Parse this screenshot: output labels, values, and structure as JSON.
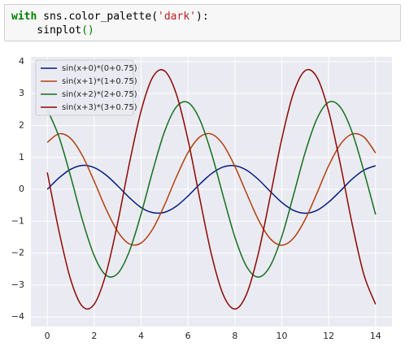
{
  "code": {
    "lines": [
      [
        {
          "text": "with",
          "color": "#008000",
          "bold": true
        },
        {
          "text": " sns.color_palette(",
          "color": "#000000",
          "bold": false
        },
        {
          "text": "'dark'",
          "color": "#ba2121",
          "bold": false
        },
        {
          "text": "):",
          "color": "#000000",
          "bold": false
        }
      ],
      [
        {
          "text": "    sinplot",
          "color": "#000000",
          "bold": false
        },
        {
          "text": "()",
          "color": "#008000",
          "bold": false
        }
      ]
    ]
  },
  "chart_data": {
    "type": "line",
    "x": [
      0,
      0.5,
      1,
      1.5,
      2,
      2.5,
      3,
      3.5,
      4,
      4.5,
      5,
      5.5,
      6,
      6.5,
      7,
      7.5,
      8,
      8.5,
      9,
      9.5,
      10,
      10.5,
      11,
      11.5,
      12,
      12.5,
      13,
      13.5,
      14
    ],
    "series": [
      {
        "name": "sin(x+0)*(0+0.75)",
        "color": "#001c7f",
        "values": [
          0,
          0.36,
          0.63,
          0.75,
          0.68,
          0.45,
          0.11,
          -0.26,
          -0.57,
          -0.73,
          -0.72,
          -0.53,
          -0.21,
          0.16,
          0.49,
          0.7,
          0.74,
          0.6,
          0.31,
          -0.06,
          -0.41,
          -0.66,
          -0.75,
          -0.66,
          -0.4,
          -0.05,
          0.32,
          0.6,
          0.74
        ]
      },
      {
        "name": "sin(x+1)*(1+0.75)",
        "color": "#b1400d",
        "values": [
          1.47,
          1.74,
          1.59,
          1.05,
          0.25,
          -0.61,
          -1.32,
          -1.71,
          -1.68,
          -1.24,
          -0.49,
          0.38,
          1.15,
          1.64,
          1.73,
          1.4,
          0.72,
          -0.13,
          -0.95,
          -1.54,
          -1.75,
          -1.53,
          -0.94,
          -0.12,
          0.74,
          1.41,
          1.73,
          1.64,
          1.14
        ]
      },
      {
        "name": "sin(x+2)*(2+0.75)",
        "color": "#12711c",
        "values": [
          2.5,
          1.64,
          0.39,
          -0.97,
          -2.08,
          -2.69,
          -2.64,
          -1.94,
          -0.77,
          0.59,
          1.81,
          2.58,
          2.72,
          2.19,
          1.13,
          -0.21,
          -1.5,
          -2.42,
          -2.75,
          -2.41,
          -1.48,
          -0.18,
          1.16,
          2.21,
          2.73,
          2.57,
          1.79,
          0.57,
          -0.79
        ]
      },
      {
        "name": "sin(x+3)*(3+0.75)",
        "color": "#8c0800",
        "values": [
          0.53,
          -1.32,
          -2.84,
          -3.67,
          -3.6,
          -2.65,
          -1.05,
          0.81,
          2.46,
          3.52,
          3.71,
          2.99,
          1.55,
          -0.28,
          -2.04,
          -3.3,
          -3.75,
          -3.28,
          -2.01,
          -0.25,
          1.58,
          3.02,
          3.72,
          3.51,
          2.44,
          0.78,
          -1.08,
          -2.67,
          -3.6
        ]
      }
    ],
    "xlim": [
      -0.7,
      14.7
    ],
    "ylim": [
      -4.3,
      4.15
    ],
    "xticks": [
      0,
      2,
      4,
      6,
      8,
      10,
      12,
      14
    ],
    "yticks": [
      {
        "value": -4,
        "label": "−4"
      },
      {
        "value": -3,
        "label": "−3"
      },
      {
        "value": -2,
        "label": "−2"
      },
      {
        "value": -1,
        "label": "−1"
      },
      0,
      1,
      2,
      3,
      4
    ],
    "grid": true,
    "legend": "upper-left"
  }
}
